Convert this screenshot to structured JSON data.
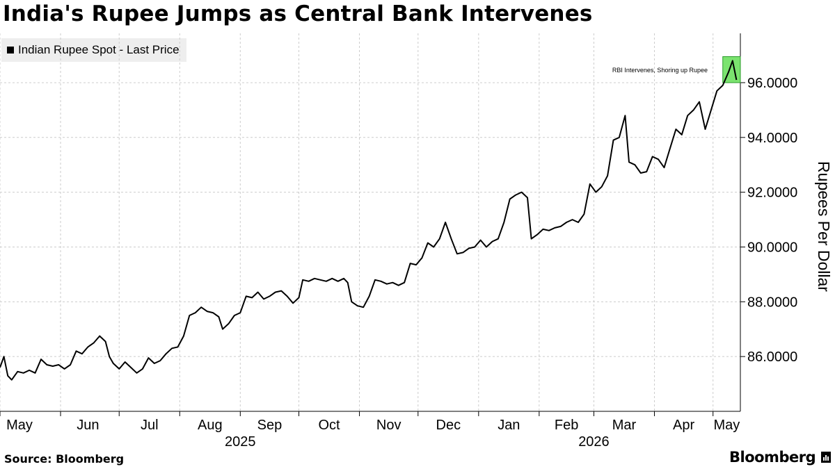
{
  "title": "India's Rupee Jumps as Central Bank Intervenes",
  "legend": {
    "label": "Indian Rupee Spot - Last Price",
    "color": "#000000"
  },
  "source": "Source: Bloomberg",
  "brand": "Bloomberg",
  "colors": {
    "line": "#000000",
    "grid": "#cccccc",
    "highlight": "#7be36f",
    "highlight_border": "#2a9a2a"
  },
  "chart_data": {
    "type": "line",
    "title": "India's Rupee Jumps as Central Bank Intervenes",
    "ylabel": "Rupees Per Dollar",
    "xlabel": "",
    "y_axis_side": "right",
    "ylim": [
      84.0,
      97.8
    ],
    "yticks": [
      86,
      88,
      90,
      92,
      94,
      96
    ],
    "ytick_labels": [
      "86.0000",
      "88.0000",
      "90.0000",
      "92.0000",
      "94.0000",
      "96.0000"
    ],
    "grid": true,
    "legend_position": "top-left",
    "x_start": "2025-05-01",
    "x_end": "2026-05-15",
    "month_labels": [
      "May",
      "Jun",
      "Jul",
      "Aug",
      "Sep",
      "Oct",
      "Nov",
      "Dec",
      "Jan",
      "Feb",
      "Mar",
      "Apr",
      "May"
    ],
    "year_labels": [
      {
        "label": "2025",
        "date": "2025-09-01"
      },
      {
        "label": "2026",
        "date": "2026-03-01"
      }
    ],
    "series": [
      {
        "name": "Indian Rupee Spot - Last Price",
        "points": [
          [
            "2025-05-01",
            85.6
          ],
          [
            "2025-05-03",
            86.0
          ],
          [
            "2025-05-05",
            85.3
          ],
          [
            "2025-05-07",
            85.15
          ],
          [
            "2025-05-10",
            85.45
          ],
          [
            "2025-05-13",
            85.4
          ],
          [
            "2025-05-16",
            85.5
          ],
          [
            "2025-05-19",
            85.4
          ],
          [
            "2025-05-22",
            85.9
          ],
          [
            "2025-05-25",
            85.7
          ],
          [
            "2025-05-28",
            85.65
          ],
          [
            "2025-05-31",
            85.7
          ],
          [
            "2025-06-03",
            85.55
          ],
          [
            "2025-06-06",
            85.7
          ],
          [
            "2025-06-09",
            86.2
          ],
          [
            "2025-06-12",
            86.1
          ],
          [
            "2025-06-15",
            86.35
          ],
          [
            "2025-06-18",
            86.5
          ],
          [
            "2025-06-21",
            86.75
          ],
          [
            "2025-06-24",
            86.55
          ],
          [
            "2025-06-26",
            86.0
          ],
          [
            "2025-06-28",
            85.75
          ],
          [
            "2025-07-01",
            85.55
          ],
          [
            "2025-07-04",
            85.8
          ],
          [
            "2025-07-07",
            85.6
          ],
          [
            "2025-07-10",
            85.4
          ],
          [
            "2025-07-13",
            85.55
          ],
          [
            "2025-07-16",
            85.95
          ],
          [
            "2025-07-19",
            85.75
          ],
          [
            "2025-07-22",
            85.85
          ],
          [
            "2025-07-25",
            86.1
          ],
          [
            "2025-07-28",
            86.3
          ],
          [
            "2025-07-31",
            86.35
          ],
          [
            "2025-08-03",
            86.75
          ],
          [
            "2025-08-06",
            87.5
          ],
          [
            "2025-08-09",
            87.6
          ],
          [
            "2025-08-12",
            87.8
          ],
          [
            "2025-08-15",
            87.65
          ],
          [
            "2025-08-18",
            87.6
          ],
          [
            "2025-08-21",
            87.45
          ],
          [
            "2025-08-23",
            87.0
          ],
          [
            "2025-08-26",
            87.2
          ],
          [
            "2025-08-29",
            87.5
          ],
          [
            "2025-09-01",
            87.6
          ],
          [
            "2025-09-04",
            88.2
          ],
          [
            "2025-09-07",
            88.15
          ],
          [
            "2025-09-10",
            88.35
          ],
          [
            "2025-09-13",
            88.1
          ],
          [
            "2025-09-16",
            88.2
          ],
          [
            "2025-09-19",
            88.35
          ],
          [
            "2025-09-22",
            88.4
          ],
          [
            "2025-09-25",
            88.2
          ],
          [
            "2025-09-28",
            87.95
          ],
          [
            "2025-10-01",
            88.15
          ],
          [
            "2025-10-03",
            88.8
          ],
          [
            "2025-10-06",
            88.75
          ],
          [
            "2025-10-09",
            88.85
          ],
          [
            "2025-10-12",
            88.8
          ],
          [
            "2025-10-15",
            88.75
          ],
          [
            "2025-10-18",
            88.85
          ],
          [
            "2025-10-21",
            88.75
          ],
          [
            "2025-10-24",
            88.85
          ],
          [
            "2025-10-26",
            88.7
          ],
          [
            "2025-10-28",
            88.0
          ],
          [
            "2025-10-31",
            87.85
          ],
          [
            "2025-11-03",
            87.8
          ],
          [
            "2025-11-06",
            88.2
          ],
          [
            "2025-11-09",
            88.8
          ],
          [
            "2025-11-12",
            88.75
          ],
          [
            "2025-11-15",
            88.65
          ],
          [
            "2025-11-18",
            88.7
          ],
          [
            "2025-11-21",
            88.6
          ],
          [
            "2025-11-24",
            88.7
          ],
          [
            "2025-11-27",
            89.4
          ],
          [
            "2025-11-30",
            89.35
          ],
          [
            "2025-12-03",
            89.6
          ],
          [
            "2025-12-06",
            90.15
          ],
          [
            "2025-12-09",
            90.0
          ],
          [
            "2025-12-12",
            90.3
          ],
          [
            "2025-12-15",
            90.9
          ],
          [
            "2025-12-18",
            90.3
          ],
          [
            "2025-12-21",
            89.75
          ],
          [
            "2025-12-24",
            89.8
          ],
          [
            "2025-12-27",
            89.95
          ],
          [
            "2025-12-30",
            90.0
          ],
          [
            "2026-01-02",
            90.25
          ],
          [
            "2026-01-05",
            90.0
          ],
          [
            "2026-01-08",
            90.2
          ],
          [
            "2026-01-11",
            90.3
          ],
          [
            "2026-01-14",
            90.9
          ],
          [
            "2026-01-17",
            91.75
          ],
          [
            "2026-01-20",
            91.9
          ],
          [
            "2026-01-23",
            92.0
          ],
          [
            "2026-01-26",
            91.8
          ],
          [
            "2026-01-28",
            90.3
          ],
          [
            "2026-01-31",
            90.45
          ],
          [
            "2026-02-03",
            90.65
          ],
          [
            "2026-02-06",
            90.6
          ],
          [
            "2026-02-09",
            90.7
          ],
          [
            "2026-02-12",
            90.75
          ],
          [
            "2026-02-15",
            90.9
          ],
          [
            "2026-02-18",
            91.0
          ],
          [
            "2026-02-21",
            90.9
          ],
          [
            "2026-02-24",
            91.2
          ],
          [
            "2026-02-27",
            92.3
          ],
          [
            "2026-03-02",
            92.0
          ],
          [
            "2026-03-05",
            92.2
          ],
          [
            "2026-03-08",
            92.6
          ],
          [
            "2026-03-11",
            93.9
          ],
          [
            "2026-03-14",
            94.0
          ],
          [
            "2026-03-17",
            94.8
          ],
          [
            "2026-03-19",
            93.1
          ],
          [
            "2026-03-22",
            93.0
          ],
          [
            "2026-03-25",
            92.7
          ],
          [
            "2026-03-28",
            92.75
          ],
          [
            "2026-03-31",
            93.3
          ],
          [
            "2026-04-03",
            93.2
          ],
          [
            "2026-04-06",
            92.9
          ],
          [
            "2026-04-09",
            93.6
          ],
          [
            "2026-04-12",
            94.3
          ],
          [
            "2026-04-15",
            94.1
          ],
          [
            "2026-04-18",
            94.8
          ],
          [
            "2026-04-21",
            95.0
          ],
          [
            "2026-04-24",
            95.3
          ],
          [
            "2026-04-27",
            94.3
          ],
          [
            "2026-04-30",
            95.0
          ],
          [
            "2026-05-03",
            95.7
          ],
          [
            "2026-05-06",
            95.9
          ],
          [
            "2026-05-09",
            96.4
          ],
          [
            "2026-05-11",
            96.8
          ],
          [
            "2026-05-13",
            96.1
          ]
        ]
      }
    ],
    "annotations": [
      {
        "text": "RBI Intervenes, Shoring up Rupee",
        "date_start": "2026-05-06",
        "date_end": "2026-05-15",
        "y_low": 96.0,
        "y_high": 96.95
      }
    ]
  }
}
